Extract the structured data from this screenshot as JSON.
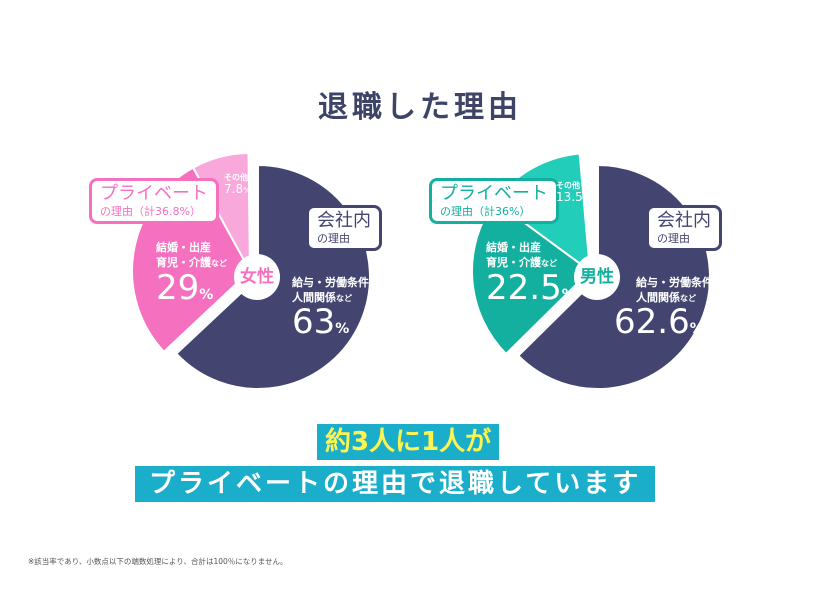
{
  "title": "退職した理由",
  "chart_data": [
    {
      "type": "pie",
      "center_label": "女性",
      "slices": [
        {
          "label": "給与・労働条件 人間関係など",
          "value": 63,
          "color": "#434570"
        },
        {
          "label": "結婚・出産 育児・介護など",
          "value": 29,
          "color": "#f571c0"
        },
        {
          "label": "その他",
          "value": 7.8,
          "color": "#f9a8dc"
        }
      ],
      "value_labels": [
        "63",
        "29",
        "7.8"
      ],
      "group_private": {
        "title": "プライベート",
        "sub": "の理由（計36.8%）",
        "color": "#f571c0"
      },
      "group_company": {
        "title": "会社内",
        "sub": "の理由"
      }
    },
    {
      "type": "pie",
      "center_label": "男性",
      "slices": [
        {
          "label": "給与・労働条件 人間関係など",
          "value": 62.6,
          "color": "#434570"
        },
        {
          "label": "結婚・出産 育児・介護など",
          "value": 22.5,
          "color": "#14b09f"
        },
        {
          "label": "その他",
          "value": 13.5,
          "color": "#22cdb9"
        }
      ],
      "value_labels": [
        "62.6",
        "22.5",
        "13.5"
      ],
      "group_private": {
        "title": "プライベート",
        "sub": "の理由（計36%）",
        "color": "#14b09f"
      },
      "group_company": {
        "title": "会社内",
        "sub": "の理由"
      }
    }
  ],
  "labels": {
    "company_line1": "給与・労働条件",
    "company_line2": "人間関係",
    "private_line1": "結婚・出産",
    "private_line2": "育児・介護",
    "nado": "など",
    "other": "その他",
    "percent": "%"
  },
  "banner": {
    "line1": "約3人に1人が",
    "line2": "プライベートの理由で退職しています"
  },
  "footnote": "※該当率であり、小数点以下の端数処理により、合計は100％になりません。"
}
